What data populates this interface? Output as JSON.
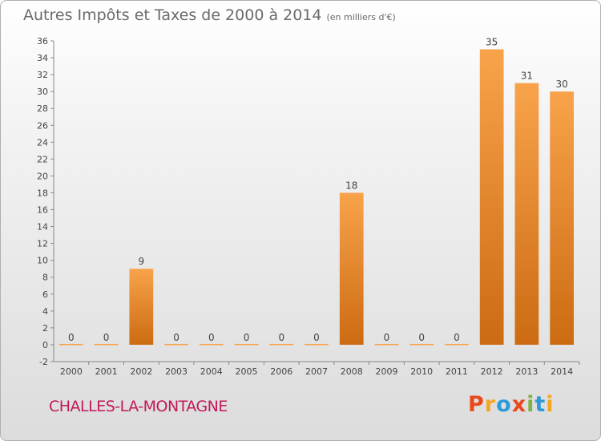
{
  "header": {
    "title": "Autres Impôts et Taxes de 2000 à 2014",
    "unit": "(en milliers d'€)"
  },
  "footer": {
    "commune": "CHALLES-LA-MONTAGNE",
    "logo_letters": [
      "P",
      "r",
      "o",
      "x",
      "i",
      "t",
      "i"
    ],
    "logo_colors": [
      "#e8491d",
      "#f4a623",
      "#2f9bd6",
      "#e8491d",
      "#7cb342",
      "#2f9bd6",
      "#f4a623"
    ]
  },
  "colors": {
    "bar_light": "#f8a34b",
    "bar_dark": "#cc6b12",
    "axis": "#888888"
  },
  "chart_data": {
    "type": "bar",
    "title": "Autres Impôts et Taxes de 2000 à 2014",
    "subtitle": "(en milliers d'€)",
    "categories": [
      "2000",
      "2001",
      "2002",
      "2003",
      "2004",
      "2005",
      "2006",
      "2007",
      "2008",
      "2009",
      "2010",
      "2011",
      "2012",
      "2013",
      "2014"
    ],
    "values": [
      0,
      0,
      9,
      0,
      0,
      0,
      0,
      0,
      18,
      0,
      0,
      0,
      35,
      31,
      30
    ],
    "ylim": [
      -2,
      36
    ],
    "yticks": [
      -2,
      0,
      2,
      4,
      6,
      8,
      10,
      12,
      14,
      16,
      18,
      20,
      22,
      24,
      26,
      28,
      30,
      32,
      34,
      36
    ],
    "grid": false,
    "xlabel": "",
    "ylabel": ""
  }
}
